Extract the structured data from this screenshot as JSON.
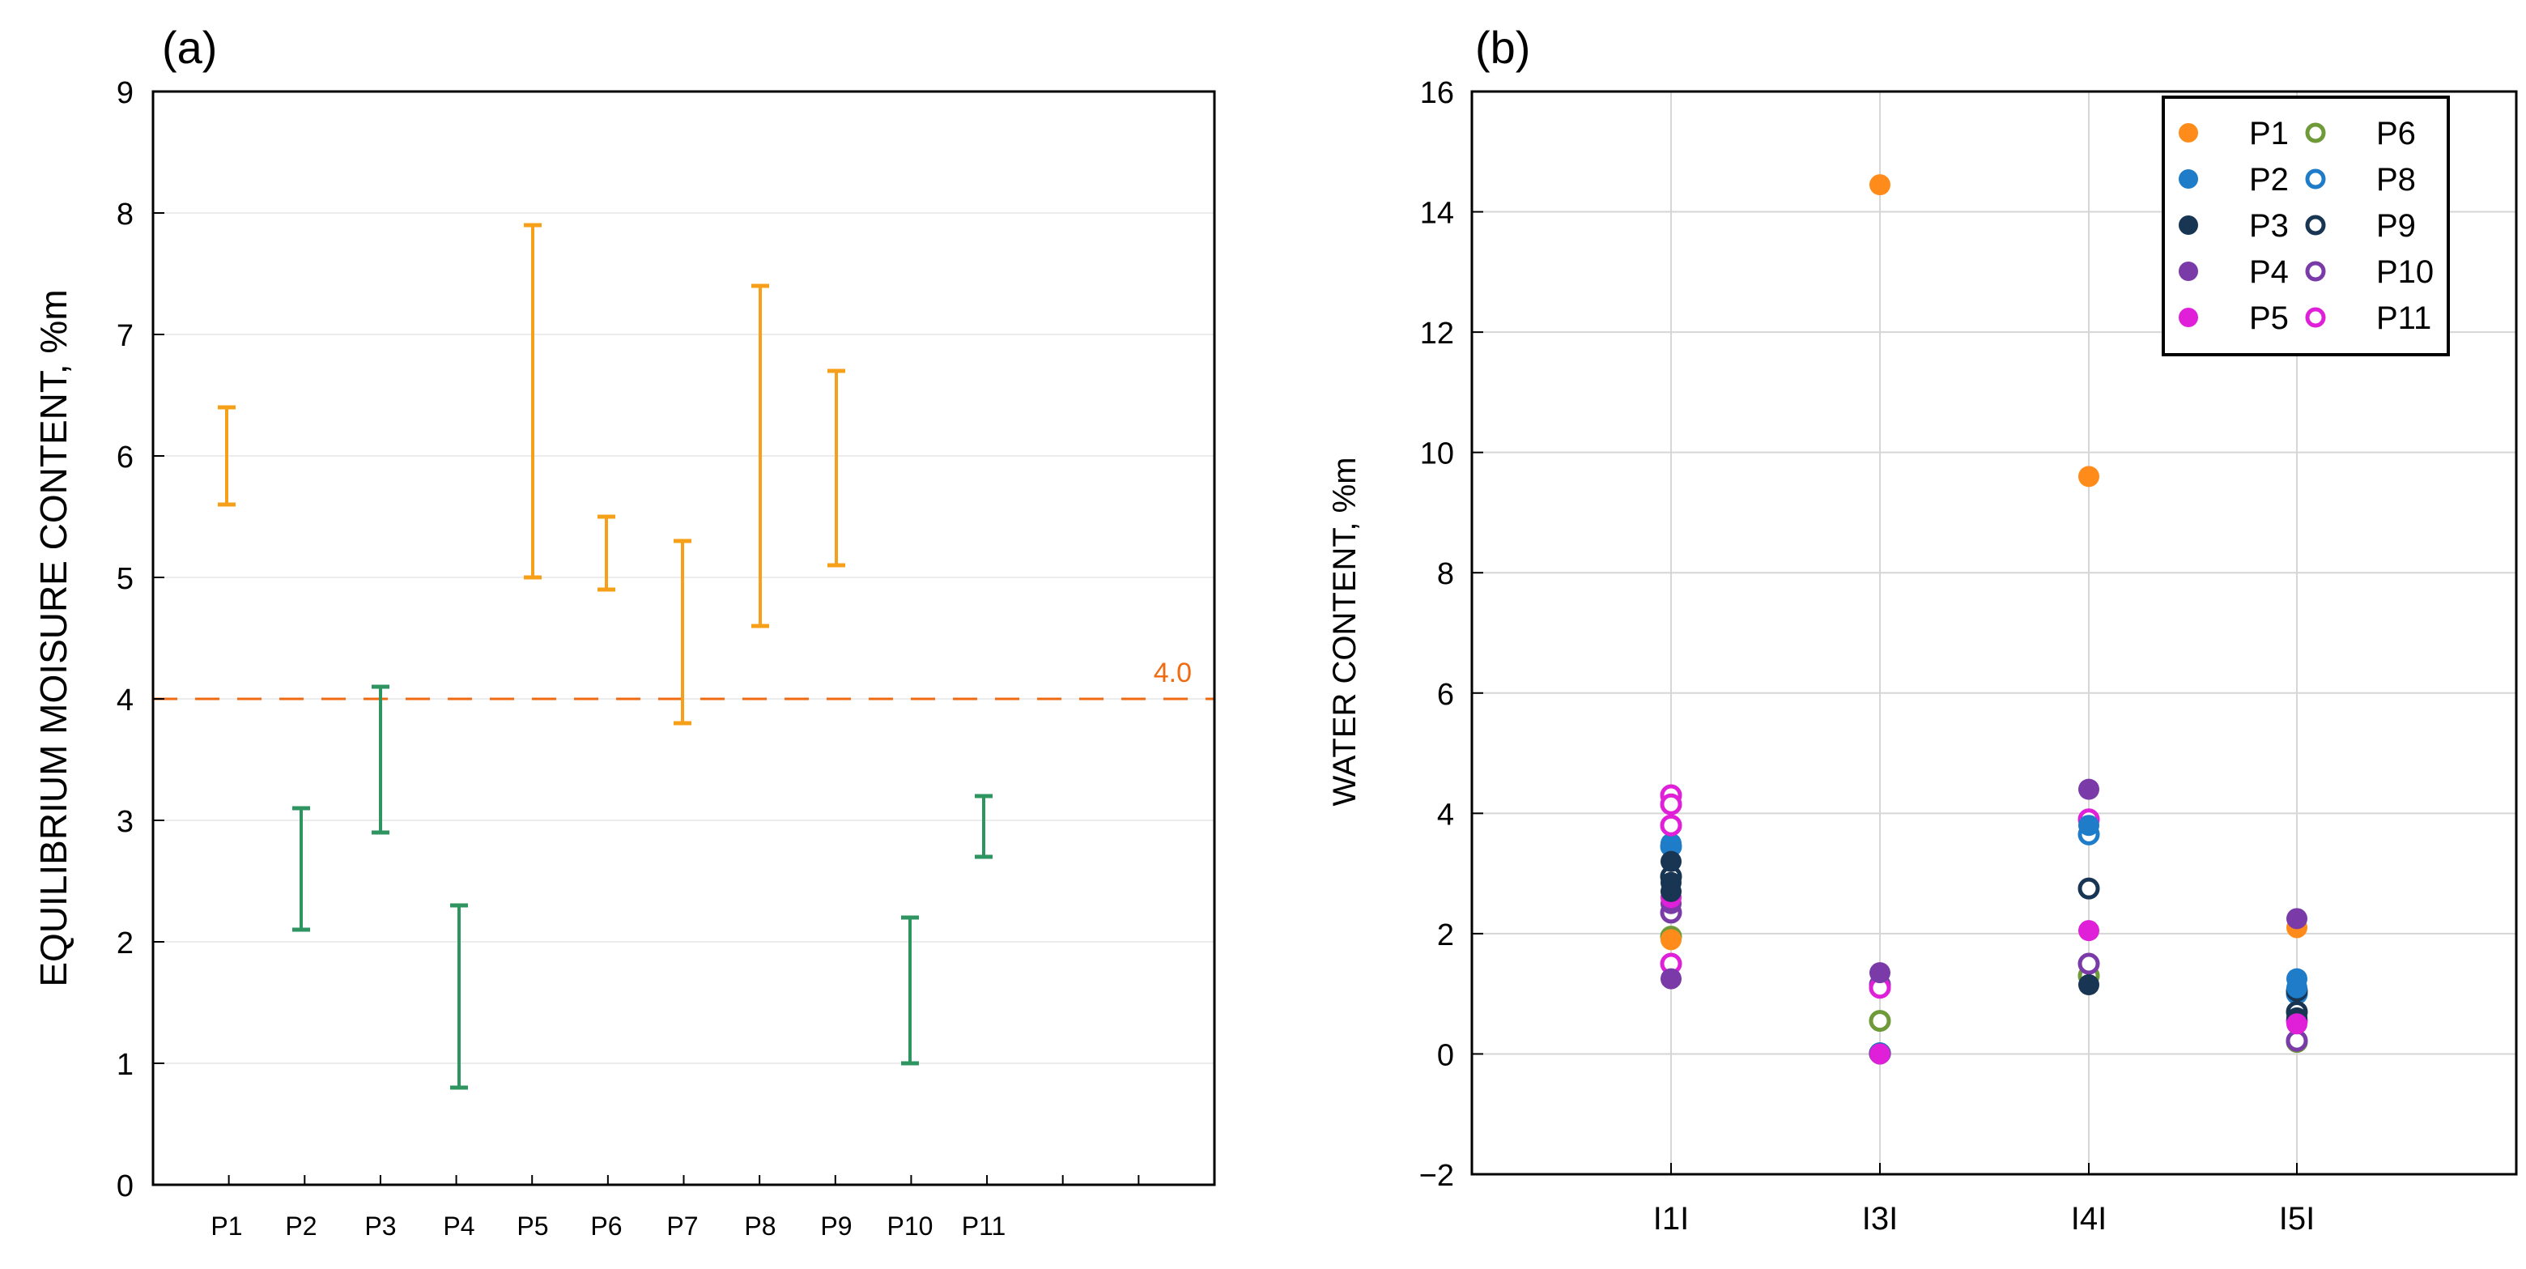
{
  "colors": {
    "orange_range": "#f5a018",
    "green_range": "#2e9460",
    "threshold": "#f06a10",
    "grid": "#d6d6d6",
    "axis": "#000000"
  },
  "panel_a": {
    "label": "(a)",
    "ylabel": "EQUILIBRIUM MOISURE CONTENT, %m",
    "threshold_label": "4.0"
  },
  "panel_b": {
    "label": "(b)",
    "ylabel": "WATER CONTENT, %m"
  },
  "chart_data": [
    {
      "type": "range",
      "title": "(a)",
      "xlabel": "",
      "ylabel": "EQUILIBRIUM MOISURE CONTENT, %m",
      "ylim": [
        0,
        9
      ],
      "yticks": [
        0,
        1,
        2,
        3,
        4,
        5,
        6,
        7,
        8,
        9
      ],
      "grid": "horizontal",
      "threshold": 4.0,
      "categories": [
        "P1",
        "P2",
        "P3",
        "P4",
        "P5",
        "P6",
        "P7",
        "P8",
        "P9",
        "P10",
        "P11"
      ],
      "ranges": [
        {
          "label": "P1",
          "low": 5.6,
          "high": 6.4,
          "color": "orange"
        },
        {
          "label": "P2",
          "low": 2.1,
          "high": 3.1,
          "color": "green"
        },
        {
          "label": "P3",
          "low": 2.9,
          "high": 4.1,
          "color": "green"
        },
        {
          "label": "P4",
          "low": 0.8,
          "high": 2.3,
          "color": "green"
        },
        {
          "label": "P5",
          "low": 5.0,
          "high": 7.9,
          "color": "orange"
        },
        {
          "label": "P6",
          "low": 4.9,
          "high": 5.5,
          "color": "orange"
        },
        {
          "label": "P7",
          "low": 3.8,
          "high": 5.3,
          "color": "orange"
        },
        {
          "label": "P8",
          "low": 4.6,
          "high": 7.4,
          "color": "orange"
        },
        {
          "label": "P9",
          "low": 5.1,
          "high": 6.7,
          "color": "orange"
        },
        {
          "label": "P10",
          "low": 1.0,
          "high": 2.2,
          "color": "green"
        },
        {
          "label": "P11",
          "low": 2.7,
          "high": 3.2,
          "color": "green"
        }
      ]
    },
    {
      "type": "scatter",
      "title": "(b)",
      "xlabel": "",
      "ylabel": "WATER CONTENT, %m",
      "ylim": [
        -2,
        16
      ],
      "yticks": [
        -2,
        0,
        2,
        4,
        6,
        8,
        10,
        12,
        14,
        16
      ],
      "ytick_labels": [
        "−2",
        "0",
        "2",
        "4",
        "6",
        "8",
        "10",
        "12",
        "14",
        "16"
      ],
      "categories": [
        "I1I",
        "I3I",
        "I4I",
        "I5I"
      ],
      "grid": true,
      "legend_position": "top-right",
      "series": [
        {
          "name": "P1",
          "color": "#ff8c1a",
          "filled": true,
          "values": [
            1.9,
            14.45,
            9.6,
            2.1
          ]
        },
        {
          "name": "P2",
          "color": "#1f7cc8",
          "filled": true,
          "values": [
            3.5,
            0.02,
            3.8,
            1.25
          ]
        },
        {
          "name": "P3",
          "color": "#183554",
          "filled": true,
          "values": [
            3.2,
            0.0,
            1.15,
            0.6
          ]
        },
        {
          "name": "P4",
          "color": "#7a3aa8",
          "filled": true,
          "values": [
            2.5,
            1.35,
            4.4,
            2.25
          ]
        },
        {
          "name": "P5",
          "color": "#e020d8",
          "filled": true,
          "values": [
            2.6,
            0.0,
            2.05,
            0.5
          ]
        },
        {
          "name": "P6",
          "color": "#6e9a3a",
          "filled": false,
          "values": [
            1.95,
            0.55,
            1.3,
            0.2
          ]
        },
        {
          "name": "P8",
          "color": "#1f7cc8",
          "filled": false,
          "values": [
            3.45,
            0.01,
            3.65,
            1.0
          ]
        },
        {
          "name": "P9",
          "color": "#183554",
          "filled": false,
          "values": [
            2.95,
            0.01,
            2.75,
            0.7
          ]
        },
        {
          "name": "P10",
          "color": "#7a3aa8",
          "filled": false,
          "values": [
            2.35,
            1.15,
            1.5,
            0.22
          ]
        },
        {
          "name": "P11",
          "color": "#e020d8",
          "filled": false,
          "values": [
            4.3,
            1.1,
            3.9,
            0.55
          ]
        }
      ],
      "extra_points": [
        {
          "series": "P11",
          "category": "I1I",
          "values": [
            4.15,
            3.8,
            1.5
          ]
        },
        {
          "series": "P3",
          "category": "I1I",
          "values": [
            2.7,
            2.85
          ]
        },
        {
          "series": "P4",
          "category": "I1I",
          "values": [
            1.25
          ]
        },
        {
          "series": "P9",
          "category": "I5I",
          "values": [
            1.05
          ]
        },
        {
          "series": "P2",
          "category": "I5I",
          "values": [
            1.1
          ]
        }
      ]
    }
  ]
}
